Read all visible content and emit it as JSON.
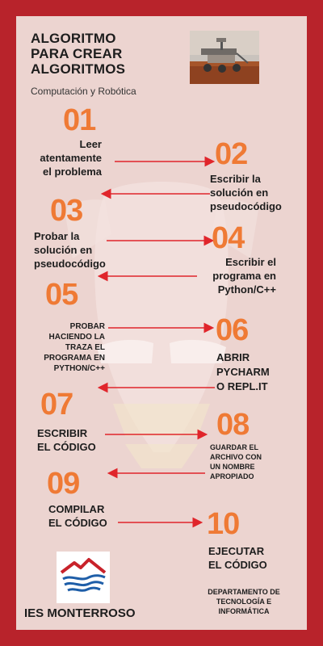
{
  "header": {
    "title_lines": [
      "ALGORITMO",
      "PARA CREAR",
      "ALGORITMOS"
    ],
    "subtitle": "Computación y Robótica"
  },
  "steps": [
    {
      "number": "01",
      "lines": [
        "Leer",
        "atentamente",
        "el problema"
      ]
    },
    {
      "number": "02",
      "lines": [
        "Escribir la",
        "solución en",
        "pseudocódigo"
      ]
    },
    {
      "number": "03",
      "lines": [
        "Probar la",
        "solución en",
        "pseudocódigo"
      ]
    },
    {
      "number": "04",
      "lines": [
        "Escribir el",
        "programa en",
        "Python/C++"
      ]
    },
    {
      "number": "05",
      "lines": [
        "PROBAR",
        "HACIENDO LA",
        "TRAZA EL",
        "PROGRAMA EN",
        "PYTHON/C++"
      ]
    },
    {
      "number": "06",
      "lines": [
        "ABRIR",
        "PYCHARM",
        "O REPL.IT"
      ]
    },
    {
      "number": "07",
      "lines": [
        "ESCRIBIR",
        "EL CÓDIGO"
      ]
    },
    {
      "number": "08",
      "lines": [
        "GUARDAR EL",
        "ARCHIVO CON",
        "UN NOMBRE",
        "APROPIADO"
      ]
    },
    {
      "number": "09",
      "lines": [
        "COMPILAR",
        "EL CÓDIGO"
      ]
    },
    {
      "number": "10",
      "lines": [
        "EJECUTAR",
        "EL CÓDIGO"
      ]
    }
  ],
  "footer": {
    "school": "IES MONTERROSO",
    "department_lines": [
      "DEPARTAMENTO DE",
      "TECNOLOGÍA E",
      "INFORMÁTICA"
    ]
  },
  "colors": {
    "border": "#b8232b",
    "background": "#ecd4d0",
    "number": "#ef7a35",
    "arrow": "#e0252b",
    "text": "#1d1d1d"
  },
  "icons": {
    "photo": "mars-rover-photo",
    "logo": "ies-monterroso-mountain-logo",
    "watermark": "iron-man-mask-silhouette"
  }
}
